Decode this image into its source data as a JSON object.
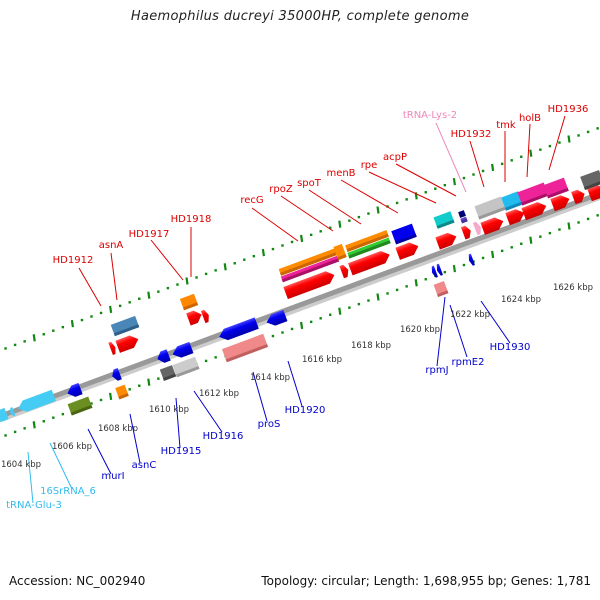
{
  "title": "Haemophilus ducreyi 35000HP, complete genome",
  "footer": {
    "accession": "Accession: NC_002940",
    "summary": "Topology: circular; Length: 1,698,955 bp; Genes: 1,781"
  },
  "colors": {
    "forward_label": "#dd0000",
    "reverse_label": "#0000cc",
    "rna_label_cyan": "#33bbee",
    "trna_lys_label": "#ee88bb",
    "ruler": "#118811",
    "backbone": "#999999"
  },
  "scale_labels": [
    "1604 kbp",
    "1606 kbp",
    "1608 kbp",
    "1610 kbp",
    "1612 kbp",
    "1614 kbp",
    "1616 kbp",
    "1618 kbp",
    "1620 kbp",
    "1622 kbp",
    "1624 kbp",
    "1626 kbp"
  ],
  "forward_gene_labels": [
    "HD1912",
    "asnA",
    "HD1917",
    "HD1918",
    "recG",
    "rpoZ",
    "spoT",
    "menB",
    "rpe",
    "acpP",
    "tRNA-Lys-2",
    "HD1932",
    "tmk",
    "holB",
    "HD1936"
  ],
  "reverse_gene_labels": [
    "tRNA-Glu-3",
    "16SrRNA_6",
    "murI",
    "asnC",
    "HD1915",
    "HD1916",
    "proS",
    "HD1920",
    "rpmJ",
    "rpmE2",
    "HD1930"
  ]
}
